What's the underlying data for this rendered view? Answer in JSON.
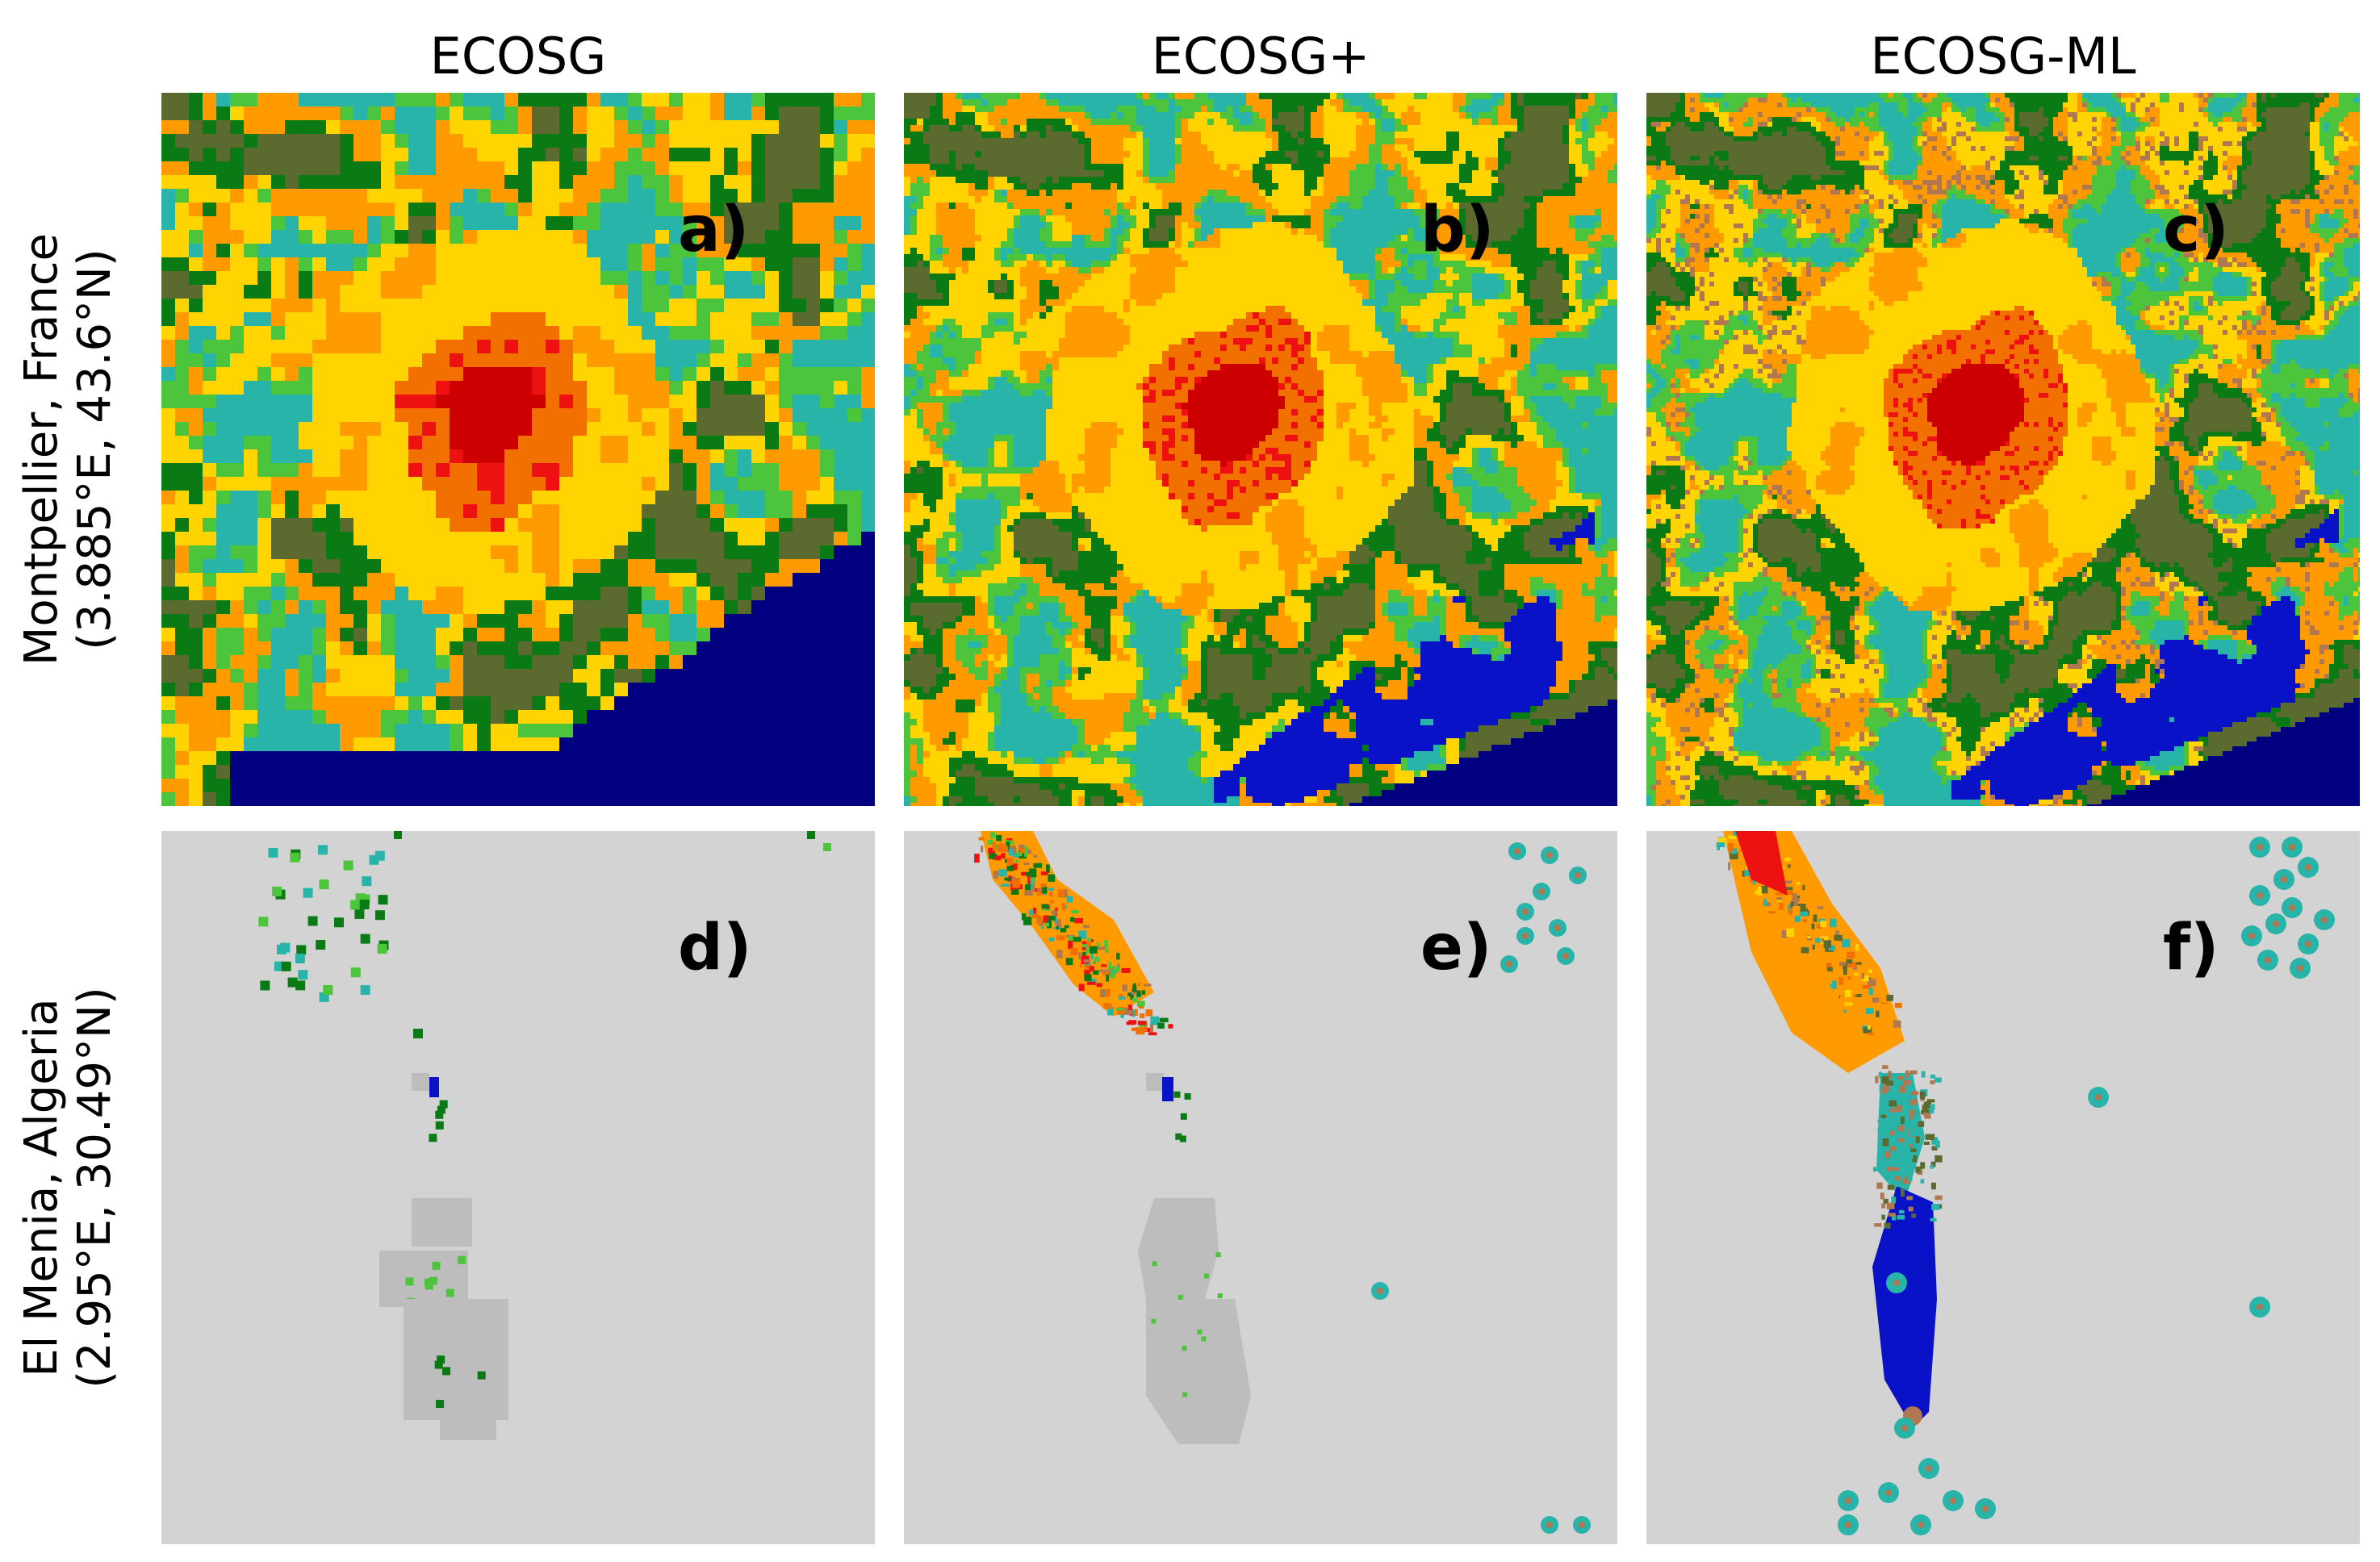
{
  "columns": [
    "ECOSG",
    "ECOSG+",
    "ECOSG-ML"
  ],
  "rows": [
    {
      "label_line1": "Montpellier, France",
      "label_line2": "(3.885°E, 43.6°N)"
    },
    {
      "label_line1": "El Menia, Algeria",
      "label_line2": "(2.95°E, 30.49°N)"
    }
  ],
  "panels": [
    {
      "id": "a)",
      "row": 0,
      "col": 0,
      "style": "coarse"
    },
    {
      "id": "b)",
      "row": 0,
      "col": 1,
      "style": "medium"
    },
    {
      "id": "c)",
      "row": 0,
      "col": 2,
      "style": "fine"
    },
    {
      "id": "d)",
      "row": 1,
      "col": 0,
      "style": "coarse"
    },
    {
      "id": "e)",
      "row": 1,
      "col": 1,
      "style": "medium"
    },
    {
      "id": "f)",
      "row": 1,
      "col": 2,
      "style": "fine"
    }
  ],
  "colors": {
    "sea": "#000080",
    "inland_water": "#0a12c8",
    "dense_urban": "#cc0000",
    "urban_red": "#ee1111",
    "urban_orange_dark": "#f27000",
    "urban_orange": "#ff9a00",
    "suburban_yellow": "#ffd400",
    "yellow_light": "#ffea00",
    "crop_teal": "#28b4a8",
    "grassland_green": "#4cc43c",
    "forest_green": "#0a7a14",
    "forest_olive": "#5b6a2f",
    "shrub_brown": "#b07850",
    "bare_soil": "#a8a8a8",
    "desert": "#d3d3d3",
    "bare_light": "#bdbdbd"
  }
}
